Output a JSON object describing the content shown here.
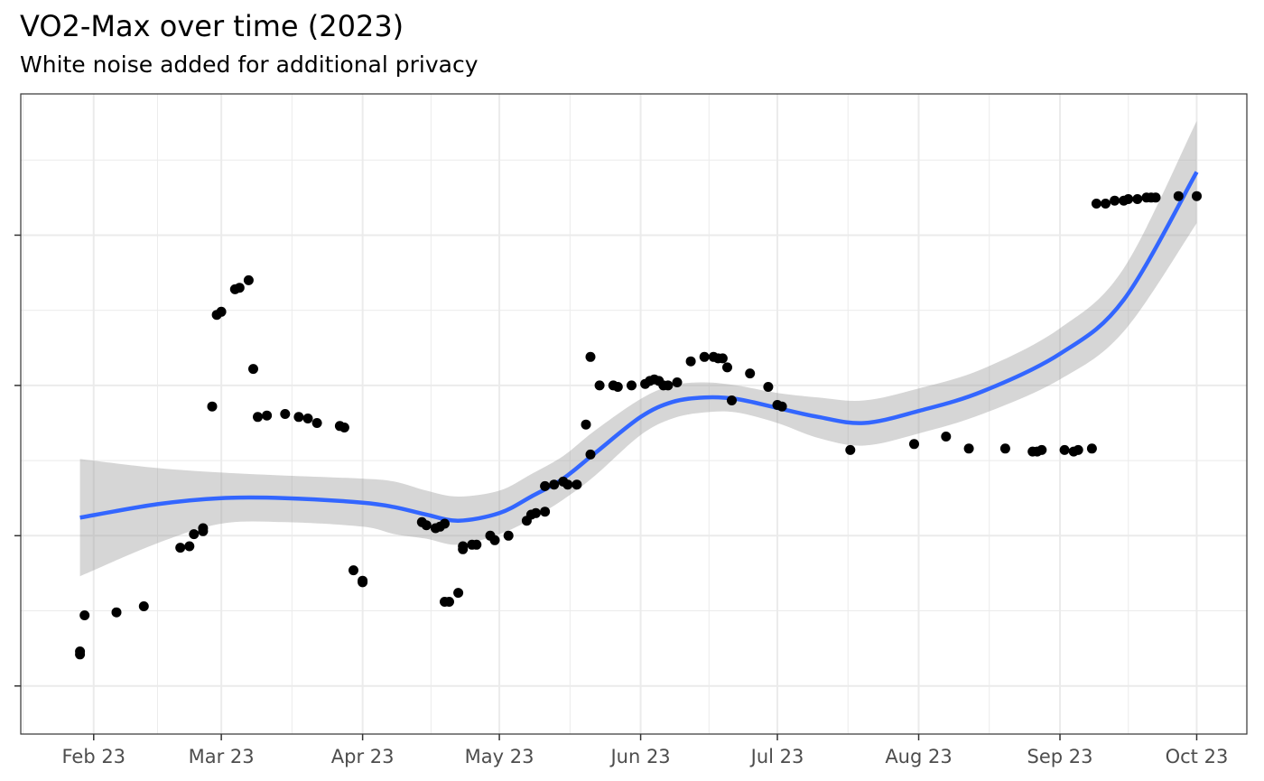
{
  "chart_data": {
    "type": "scatter",
    "title": "VO2-Max over time (2023)",
    "subtitle": "White noise added for additional privacy",
    "xlabel": "",
    "ylabel": "",
    "x_tick_labels": [
      "Feb 23",
      "Mar 23",
      "Apr 23",
      "May 23",
      "Jun 23",
      "Jul 23",
      "Aug 23",
      "Sep 23",
      "Oct 23"
    ],
    "x_ticks": [
      "2023-02-01",
      "2023-03-01",
      "2023-04-01",
      "2023-05-01",
      "2023-06-01",
      "2023-07-01",
      "2023-08-01",
      "2023-09-01",
      "2023-10-01"
    ],
    "xlim": [
      "2023-01-16",
      "2023-10-12"
    ],
    "ylim": [
      0.98,
      5.24
    ],
    "y_ticks": [
      1.3,
      2.3,
      3.3,
      4.3
    ],
    "y_tick_labels_shown": false,
    "grid": true,
    "colors": {
      "points": "#000000",
      "smooth_line": "#3366ff",
      "confidence_band": "#999999",
      "grid": "#ebebeb",
      "panel_border": "#333333"
    },
    "points": [
      {
        "x": "2023-01-29",
        "y": 1.51
      },
      {
        "x": "2023-01-29",
        "y": 1.53
      },
      {
        "x": "2023-01-30",
        "y": 1.77
      },
      {
        "x": "2023-02-06",
        "y": 1.79
      },
      {
        "x": "2023-02-12",
        "y": 1.83
      },
      {
        "x": "2023-02-20",
        "y": 2.22
      },
      {
        "x": "2023-02-22",
        "y": 2.23
      },
      {
        "x": "2023-02-23",
        "y": 2.31
      },
      {
        "x": "2023-02-25",
        "y": 2.33
      },
      {
        "x": "2023-02-25",
        "y": 2.35
      },
      {
        "x": "2023-02-27",
        "y": 3.16
      },
      {
        "x": "2023-02-28",
        "y": 3.77
      },
      {
        "x": "2023-03-01",
        "y": 3.79
      },
      {
        "x": "2023-03-04",
        "y": 3.94
      },
      {
        "x": "2023-03-05",
        "y": 3.95
      },
      {
        "x": "2023-03-07",
        "y": 4.0
      },
      {
        "x": "2023-03-08",
        "y": 3.41
      },
      {
        "x": "2023-03-09",
        "y": 3.09
      },
      {
        "x": "2023-03-11",
        "y": 3.1
      },
      {
        "x": "2023-03-15",
        "y": 3.11
      },
      {
        "x": "2023-03-18",
        "y": 3.09
      },
      {
        "x": "2023-03-20",
        "y": 3.08
      },
      {
        "x": "2023-03-22",
        "y": 3.05
      },
      {
        "x": "2023-03-27",
        "y": 3.03
      },
      {
        "x": "2023-03-28",
        "y": 3.02
      },
      {
        "x": "2023-03-30",
        "y": 2.07
      },
      {
        "x": "2023-04-01",
        "y": 2.0
      },
      {
        "x": "2023-04-01",
        "y": 1.99
      },
      {
        "x": "2023-04-14",
        "y": 2.39
      },
      {
        "x": "2023-04-15",
        "y": 2.37
      },
      {
        "x": "2023-04-17",
        "y": 2.35
      },
      {
        "x": "2023-04-18",
        "y": 2.36
      },
      {
        "x": "2023-04-19",
        "y": 2.38
      },
      {
        "x": "2023-04-19",
        "y": 1.86
      },
      {
        "x": "2023-04-20",
        "y": 1.86
      },
      {
        "x": "2023-04-22",
        "y": 1.92
      },
      {
        "x": "2023-04-23",
        "y": 2.21
      },
      {
        "x": "2023-04-23",
        "y": 2.23
      },
      {
        "x": "2023-04-25",
        "y": 2.24
      },
      {
        "x": "2023-04-26",
        "y": 2.24
      },
      {
        "x": "2023-04-29",
        "y": 2.3
      },
      {
        "x": "2023-04-30",
        "y": 2.27
      },
      {
        "x": "2023-05-03",
        "y": 2.3
      },
      {
        "x": "2023-05-07",
        "y": 2.4
      },
      {
        "x": "2023-05-08",
        "y": 2.44
      },
      {
        "x": "2023-05-09",
        "y": 2.45
      },
      {
        "x": "2023-05-11",
        "y": 2.46
      },
      {
        "x": "2023-05-11",
        "y": 2.63
      },
      {
        "x": "2023-05-13",
        "y": 2.64
      },
      {
        "x": "2023-05-15",
        "y": 2.66
      },
      {
        "x": "2023-05-16",
        "y": 2.64
      },
      {
        "x": "2023-05-18",
        "y": 2.64
      },
      {
        "x": "2023-05-20",
        "y": 3.04
      },
      {
        "x": "2023-05-21",
        "y": 2.84
      },
      {
        "x": "2023-05-21",
        "y": 3.49
      },
      {
        "x": "2023-05-23",
        "y": 3.3
      },
      {
        "x": "2023-05-26",
        "y": 3.3
      },
      {
        "x": "2023-05-27",
        "y": 3.29
      },
      {
        "x": "2023-05-30",
        "y": 3.3
      },
      {
        "x": "2023-06-02",
        "y": 3.31
      },
      {
        "x": "2023-06-03",
        "y": 3.33
      },
      {
        "x": "2023-06-04",
        "y": 3.34
      },
      {
        "x": "2023-06-05",
        "y": 3.33
      },
      {
        "x": "2023-06-06",
        "y": 3.3
      },
      {
        "x": "2023-06-07",
        "y": 3.3
      },
      {
        "x": "2023-06-09",
        "y": 3.32
      },
      {
        "x": "2023-06-12",
        "y": 3.46
      },
      {
        "x": "2023-06-15",
        "y": 3.49
      },
      {
        "x": "2023-06-17",
        "y": 3.49
      },
      {
        "x": "2023-06-18",
        "y": 3.48
      },
      {
        "x": "2023-06-19",
        "y": 3.48
      },
      {
        "x": "2023-06-20",
        "y": 3.42
      },
      {
        "x": "2023-06-21",
        "y": 3.2
      },
      {
        "x": "2023-06-25",
        "y": 3.38
      },
      {
        "x": "2023-06-29",
        "y": 3.29
      },
      {
        "x": "2023-07-01",
        "y": 3.17
      },
      {
        "x": "2023-07-02",
        "y": 3.16
      },
      {
        "x": "2023-07-17",
        "y": 2.87
      },
      {
        "x": "2023-07-31",
        "y": 2.91
      },
      {
        "x": "2023-08-07",
        "y": 2.96
      },
      {
        "x": "2023-08-12",
        "y": 2.88
      },
      {
        "x": "2023-08-20",
        "y": 2.88
      },
      {
        "x": "2023-08-26",
        "y": 2.86
      },
      {
        "x": "2023-08-27",
        "y": 2.86
      },
      {
        "x": "2023-08-28",
        "y": 2.87
      },
      {
        "x": "2023-09-02",
        "y": 2.87
      },
      {
        "x": "2023-09-04",
        "y": 2.86
      },
      {
        "x": "2023-09-05",
        "y": 2.87
      },
      {
        "x": "2023-09-08",
        "y": 2.88
      },
      {
        "x": "2023-09-09",
        "y": 4.51
      },
      {
        "x": "2023-09-11",
        "y": 4.51
      },
      {
        "x": "2023-09-13",
        "y": 4.53
      },
      {
        "x": "2023-09-15",
        "y": 4.53
      },
      {
        "x": "2023-09-16",
        "y": 4.54
      },
      {
        "x": "2023-09-18",
        "y": 4.54
      },
      {
        "x": "2023-09-20",
        "y": 4.55
      },
      {
        "x": "2023-09-21",
        "y": 4.55
      },
      {
        "x": "2023-09-22",
        "y": 4.55
      },
      {
        "x": "2023-09-27",
        "y": 4.56
      },
      {
        "x": "2023-10-01",
        "y": 4.56
      }
    ],
    "smooth": {
      "method": "loess",
      "x": [
        "2023-01-29",
        "2023-02-15",
        "2023-03-01",
        "2023-03-15",
        "2023-04-01",
        "2023-04-08",
        "2023-04-15",
        "2023-04-22",
        "2023-05-01",
        "2023-05-08",
        "2023-05-15",
        "2023-05-22",
        "2023-06-01",
        "2023-06-08",
        "2023-06-15",
        "2023-06-22",
        "2023-07-01",
        "2023-07-10",
        "2023-07-20",
        "2023-08-01",
        "2023-08-15",
        "2023-09-01",
        "2023-09-15",
        "2023-10-01"
      ],
      "y": [
        2.42,
        2.51,
        2.55,
        2.55,
        2.52,
        2.49,
        2.44,
        2.4,
        2.45,
        2.56,
        2.68,
        2.85,
        3.09,
        3.19,
        3.22,
        3.21,
        3.15,
        3.09,
        3.05,
        3.13,
        3.26,
        3.51,
        3.87,
        4.72
      ],
      "ci_low": [
        2.03,
        2.25,
        2.38,
        2.39,
        2.36,
        2.31,
        2.28,
        2.24,
        2.31,
        2.41,
        2.54,
        2.7,
        2.97,
        3.08,
        3.12,
        3.12,
        3.05,
        2.95,
        2.9,
        2.98,
        3.11,
        3.34,
        3.66,
        4.38
      ],
      "ci_high": [
        2.81,
        2.75,
        2.72,
        2.7,
        2.68,
        2.66,
        2.6,
        2.56,
        2.6,
        2.71,
        2.83,
        3.0,
        3.21,
        3.3,
        3.32,
        3.3,
        3.25,
        3.22,
        3.2,
        3.28,
        3.41,
        3.68,
        4.08,
        5.06
      ]
    }
  }
}
